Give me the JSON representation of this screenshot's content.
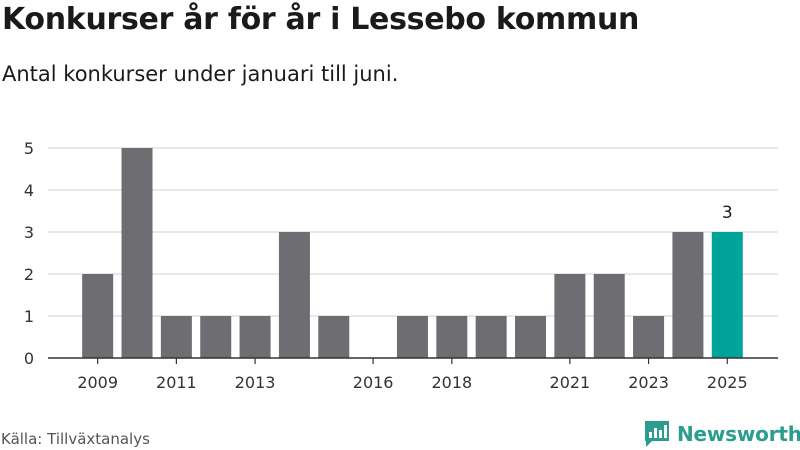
{
  "header": {
    "title": "Konkurser år för år i Lessebo kommun",
    "subtitle": "Antal konkurser under januari till juni."
  },
  "footer": {
    "source": "Källa: Tillväxtanalys",
    "brand": "Newsworthy"
  },
  "colors": {
    "bar": "#6e6d72",
    "highlight": "#00a39a",
    "grid": "#d9d9d9",
    "axis": "#333333",
    "brand": "#2a9d8f"
  },
  "chart_data": {
    "type": "bar",
    "categories": [
      "2009",
      "2010",
      "2011",
      "2012",
      "2013",
      "2014",
      "2015",
      "2016",
      "2017",
      "2018",
      "2019",
      "2020",
      "2021",
      "2022",
      "2023",
      "2024",
      "2025"
    ],
    "values": [
      2,
      5,
      1,
      1,
      1,
      3,
      1,
      0,
      1,
      1,
      1,
      1,
      2,
      2,
      1,
      3,
      3
    ],
    "x_tick_labels": [
      "2009",
      "2011",
      "2013",
      "2016",
      "2018",
      "2021",
      "2023",
      "2025"
    ],
    "y_ticks": [
      0,
      1,
      2,
      3,
      4,
      5
    ],
    "ylim": [
      0,
      5
    ],
    "highlight_index": 16,
    "data_labels": [
      {
        "index": 16,
        "text": "3"
      }
    ],
    "title": "Konkurser år för år i Lessebo kommun",
    "subtitle": "Antal konkurser under januari till juni.",
    "xlabel": "",
    "ylabel": "",
    "grid": true,
    "legend": "none"
  }
}
